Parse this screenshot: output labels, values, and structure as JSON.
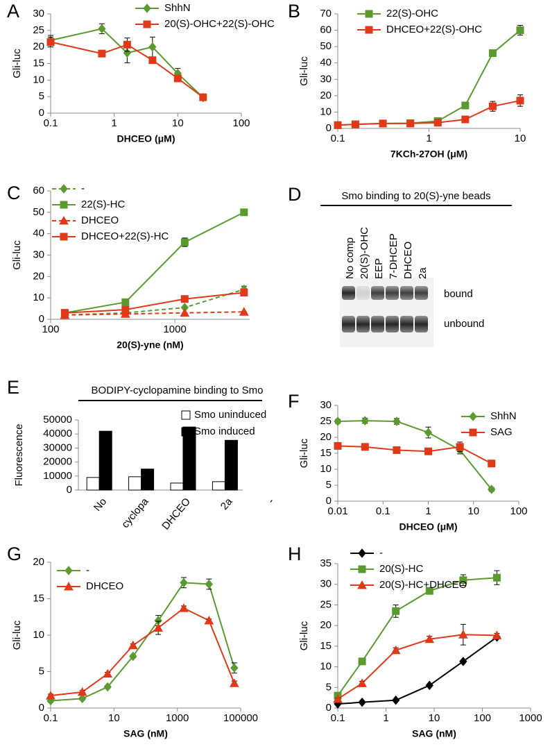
{
  "chart_data": [
    {
      "type": "line",
      "panel": "A",
      "xscale": "log",
      "xlabel": "DHCEO (μM)",
      "ylabel": "Gli-luc",
      "x": [
        0.1,
        0.64,
        1.6,
        4,
        10,
        25
      ],
      "xlim": [
        0.1,
        100
      ],
      "xticks": [
        0.1,
        1,
        10,
        100
      ],
      "ylim": [
        0,
        30
      ],
      "yticks": [
        0,
        5,
        10,
        15,
        20,
        25,
        30
      ],
      "series": [
        {
          "name": "ShhN",
          "color": "#5a9a2e",
          "marker": "diamond",
          "values": [
            22,
            25.5,
            18.2,
            20,
            12,
            4.7
          ],
          "errors": [
            1.5,
            1.5,
            3,
            3,
            1.5,
            0.5
          ]
        },
        {
          "name": "20(S)-OHC+22(S)-OHC",
          "color": "#e0391a",
          "marker": "square",
          "values": [
            21.5,
            18,
            20.7,
            16,
            10.5,
            4.8
          ],
          "errors": [
            1.5,
            1,
            2,
            1,
            0.5,
            0.5
          ]
        }
      ]
    },
    {
      "type": "line",
      "panel": "B",
      "xscale": "log",
      "xlabel": "7KCh-27OH (μM)",
      "ylabel": "Gli-luc",
      "x": [
        0.1,
        0.156,
        0.3125,
        0.625,
        1.25,
        2.5,
        5,
        10
      ],
      "xlim": [
        0.1,
        10
      ],
      "xticks": [
        0.1,
        1,
        10
      ],
      "ylim": [
        0,
        70
      ],
      "yticks": [
        0,
        10,
        20,
        30,
        40,
        50,
        60,
        70
      ],
      "series": [
        {
          "name": "22(S)-OHC",
          "color": "#5a9a2e",
          "marker": "square",
          "values": [
            2,
            2.5,
            3,
            3.2,
            4.5,
            14,
            46,
            60
          ],
          "errors": [
            0,
            0,
            0,
            0,
            0.5,
            1.5,
            1,
            3
          ]
        },
        {
          "name": "DHCEO+22(S)-OHC",
          "color": "#e0391a",
          "marker": "square",
          "values": [
            2,
            2.5,
            3,
            3,
            3.5,
            5.5,
            13.5,
            17
          ],
          "errors": [
            0,
            0,
            0,
            0,
            0,
            0.5,
            3,
            3.5
          ]
        }
      ]
    },
    {
      "type": "line",
      "panel": "C",
      "xscale": "log",
      "xlabel": "20(S)-yne (nM)",
      "ylabel": "Gli-luc",
      "x": [
        130,
        400,
        1200,
        3600
      ],
      "xlim": [
        100,
        4000
      ],
      "xticks": [
        100,
        1000
      ],
      "ylim": [
        0,
        60
      ],
      "yticks": [
        0,
        10,
        20,
        30,
        40,
        50,
        60
      ],
      "series": [
        {
          "name": "-",
          "color": "#5a9a2e",
          "marker": "diamond",
          "dash": true,
          "values": [
            2,
            3,
            5.5,
            14
          ],
          "errors": [
            0,
            0,
            0,
            1.5
          ]
        },
        {
          "name": "22(S)-HC",
          "color": "#5a9a2e",
          "marker": "square",
          "values": [
            3,
            8,
            36,
            50
          ],
          "errors": [
            0,
            1,
            2,
            1
          ]
        },
        {
          "name": "DHCEO",
          "color": "#e0391a",
          "marker": "triangle",
          "dash": true,
          "values": [
            2,
            2.5,
            3,
            3.5
          ],
          "errors": [
            0,
            0,
            0,
            0
          ]
        },
        {
          "name": "DHCEO+22(S)-HC",
          "color": "#e0391a",
          "marker": "square",
          "values": [
            3,
            4.5,
            9.5,
            12.5
          ],
          "errors": [
            0,
            0.5,
            1,
            1.5
          ]
        }
      ]
    },
    {
      "type": "bar",
      "panel": "E",
      "title": "BODIPY-cyclopamine binding to Smo",
      "ylabel": "Fluorescence",
      "categories": [
        "No",
        "cyclopa",
        "DHCEO",
        "2a",
        "-"
      ],
      "ylim": [
        0,
        50000
      ],
      "yticks": [
        0,
        10000,
        20000,
        30000,
        40000,
        50000
      ],
      "series": [
        {
          "name": "Smo uninduced",
          "color": "#ffffff",
          "values": [
            9000,
            9500,
            5000,
            6000,
            null
          ]
        },
        {
          "name": "Smo induced",
          "color": "#000000",
          "values": [
            42000,
            15000,
            45000,
            35500,
            null
          ]
        }
      ]
    },
    {
      "type": "line",
      "panel": "F",
      "xscale": "log",
      "xlabel": "DHCEO (μM)",
      "ylabel": "Gli-luc",
      "x": [
        0.01,
        0.04,
        0.2,
        1,
        5,
        25
      ],
      "xlim": [
        0.01,
        100
      ],
      "xticks": [
        0.01,
        0.1,
        1,
        10,
        100
      ],
      "ylim": [
        0,
        30
      ],
      "yticks": [
        0,
        5,
        10,
        15,
        20,
        25,
        30
      ],
      "series": [
        {
          "name": "ShhN",
          "color": "#5a9a2e",
          "marker": "diamond",
          "values": [
            25,
            25.2,
            25,
            21.5,
            16,
            3.7
          ],
          "errors": [
            0.6,
            0.8,
            0.9,
            1.7,
            1.2,
            0.6
          ]
        },
        {
          "name": "SAG",
          "color": "#e0391a",
          "marker": "square",
          "values": [
            17.3,
            17,
            16,
            15.6,
            17,
            11.8
          ],
          "errors": [
            0.5,
            0.3,
            0.7,
            0.3,
            1.5,
            0.5
          ]
        }
      ]
    },
    {
      "type": "line",
      "panel": "G",
      "xscale": "log",
      "xlabel": "SAG (nM)",
      "ylabel": "Gli-luc",
      "x": [
        0.1,
        1,
        6.3,
        40,
        250,
        1600,
        10000,
        63000
      ],
      "xlim": [
        0.1,
        100000
      ],
      "xticks": [
        0.1,
        10,
        1000,
        100000
      ],
      "ylim": [
        0,
        20
      ],
      "yticks": [
        0,
        5,
        10,
        15,
        20
      ],
      "series": [
        {
          "name": "-",
          "color": "#5a9a2e",
          "marker": "diamond",
          "values": [
            1,
            1.3,
            2.9,
            7.1,
            12,
            17.2,
            17,
            5.5
          ],
          "errors": [
            0.2,
            0.2,
            0.2,
            0.2,
            0.7,
            0.7,
            0.7,
            0.7
          ]
        },
        {
          "name": "DHCEO",
          "color": "#e0391a",
          "marker": "triangle",
          "values": [
            1.7,
            2.2,
            4.7,
            8.6,
            11,
            13.7,
            12,
            3.4
          ],
          "errors": [
            0.2,
            0.2,
            0.2,
            0.2,
            0.9,
            0.3,
            0.2,
            0.3
          ]
        }
      ]
    },
    {
      "type": "line",
      "panel": "H",
      "xscale": "log",
      "xlabel": "SAG (nM)",
      "ylabel": "Gli-luc",
      "x": [
        0.1,
        0.32,
        1.6,
        8,
        40,
        200
      ],
      "xlim": [
        0.1,
        1000
      ],
      "xticks": [
        0.1,
        1,
        10,
        100,
        1000
      ],
      "ylim": [
        0,
        35
      ],
      "yticks": [
        0,
        5,
        10,
        15,
        20,
        25,
        30,
        35
      ],
      "series": [
        {
          "name": "-",
          "color": "#000000",
          "marker": "diamond",
          "values": [
            1,
            1.4,
            1.9,
            5.5,
            11.3,
            17.2
          ],
          "errors": [
            0,
            0,
            0,
            0,
            0.3,
            0.3
          ]
        },
        {
          "name": "20(S)-HC",
          "color": "#5a9a2e",
          "marker": "square",
          "values": [
            3,
            11.3,
            23.5,
            28.4,
            31,
            31.6
          ],
          "errors": [
            0.5,
            0.5,
            1.5,
            0.5,
            1.3,
            1.7
          ]
        },
        {
          "name": "20(S)-HC+DHCEO",
          "color": "#e0391a",
          "marker": "triangle",
          "values": [
            2.2,
            6,
            14,
            16.7,
            17.8,
            17.6
          ],
          "errors": [
            0.2,
            0.5,
            0.6,
            0.7,
            2.5,
            0.5
          ]
        }
      ]
    }
  ],
  "gel": {
    "panel": "D",
    "title": "Smo binding to 20(S)-yne beads",
    "lanes": [
      "No comp",
      "20(S)-OHC",
      "EEP",
      "7-DHCEP",
      "DHCEO",
      "2a"
    ],
    "rows": [
      "bound",
      "unbound"
    ]
  }
}
